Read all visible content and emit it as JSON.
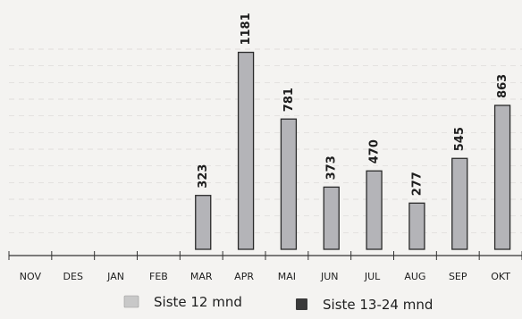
{
  "chart_data": {
    "type": "bar",
    "categories": [
      "NOV",
      "DES",
      "JAN",
      "FEB",
      "MAR",
      "APR",
      "MAI",
      "JUN",
      "JUL",
      "AUG",
      "SEP",
      "OKT"
    ],
    "series": [
      {
        "name": "Siste 12 mnd",
        "values": [
          null,
          null,
          null,
          null,
          323,
          1181,
          781,
          373,
          470,
          277,
          545,
          863
        ],
        "data_labels": [
          "",
          "",
          "",
          "",
          "323",
          "1181",
          "781",
          "373",
          "470",
          "277",
          "545",
          "863"
        ]
      },
      {
        "name": "Siste 13-24 mnd",
        "values": [
          null,
          null,
          null,
          null,
          null,
          null,
          null,
          null,
          null,
          null,
          null,
          null
        ]
      }
    ],
    "ylim": [
      0,
      1200
    ],
    "grid": true,
    "legend_position": "bottom",
    "colors": {
      "bar_fill": "#b4b4b8",
      "bar_stroke": "#2a2a2a",
      "grid": "#d9d8d5",
      "axis": "#333333",
      "legend_swatch_1": "#c8c8c8",
      "legend_swatch_2": "#3a3a3a"
    }
  }
}
